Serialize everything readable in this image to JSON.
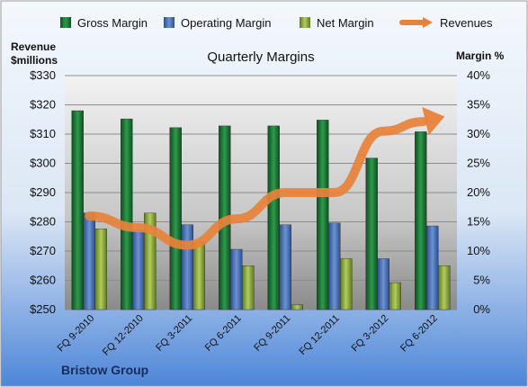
{
  "chart_data": {
    "type": "bar",
    "title": "Quarterly Margins",
    "company": "Bristow Group",
    "left_axis_title_line1": "Revenue",
    "left_axis_title_line2": "$millions",
    "right_axis_title": "Margin %",
    "left_ylim": [
      250,
      330
    ],
    "left_ticks": [
      "$250",
      "$260",
      "$270",
      "$280",
      "$290",
      "$300",
      "$310",
      "$320",
      "$330"
    ],
    "right_ylim": [
      0,
      40
    ],
    "right_ticks": [
      "0%",
      "5%",
      "10%",
      "15%",
      "20%",
      "25%",
      "30%",
      "35%",
      "40%"
    ],
    "categories": [
      "FQ 9-2010",
      "FQ 12-2010",
      "FQ 3-2011",
      "FQ 6-2011",
      "FQ 9-2011",
      "FQ 12-2011",
      "FQ 3-2012",
      "FQ 6-2012"
    ],
    "series": [
      {
        "name": "Gross Margin",
        "type": "bar",
        "axis": "right",
        "color": "#1e7a3a",
        "values": [
          34.0,
          32.6,
          31.1,
          31.4,
          31.4,
          32.4,
          25.9,
          30.4
        ]
      },
      {
        "name": "Operating Margin",
        "type": "bar",
        "axis": "right",
        "color": "#4a72b8",
        "values": [
          16.5,
          13.6,
          14.5,
          10.3,
          14.5,
          14.8,
          8.7,
          14.3
        ]
      },
      {
        "name": "Net Margin",
        "type": "bar",
        "axis": "right",
        "color": "#8aaa3a",
        "values": [
          13.8,
          16.5,
          11.5,
          7.5,
          0.8,
          8.7,
          4.6,
          7.5
        ]
      },
      {
        "name": "Revenues",
        "type": "line",
        "axis": "left",
        "color": "#e8823a",
        "values": [
          282,
          278,
          272,
          281,
          290,
          290,
          311,
          315
        ]
      }
    ],
    "grid": true,
    "legend_position": "top"
  }
}
